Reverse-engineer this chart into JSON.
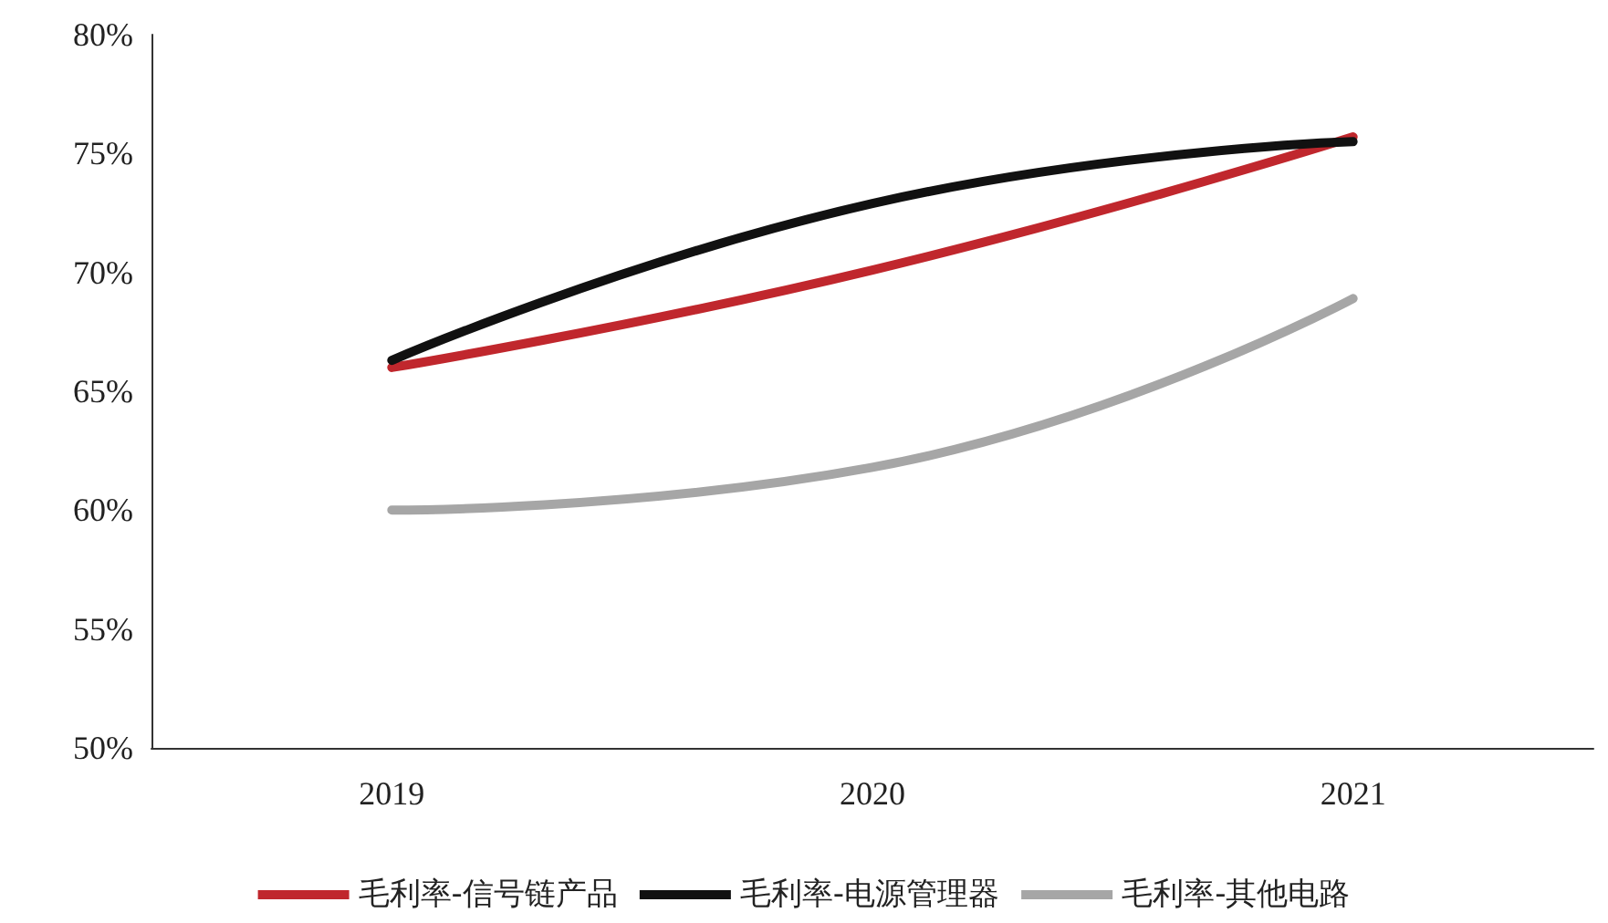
{
  "chart_data": {
    "type": "line",
    "categories": [
      "2019",
      "2020",
      "2021"
    ],
    "series": [
      {
        "name": "毛利率-信号链产品",
        "color": "#c0272d",
        "values": [
          66.0,
          70.1,
          75.7
        ]
      },
      {
        "name": "毛利率-电源管理器",
        "color": "#111111",
        "values": [
          66.3,
          72.9,
          75.5
        ]
      },
      {
        "name": "毛利率-其他电路",
        "color": "#a6a6a6",
        "values": [
          60.0,
          61.8,
          68.9
        ]
      }
    ],
    "ylim": [
      50,
      80
    ],
    "yticks": [
      {
        "value": 50,
        "label": "50%"
      },
      {
        "value": 55,
        "label": "55%"
      },
      {
        "value": 60,
        "label": "60%"
      },
      {
        "value": 65,
        "label": "65%"
      },
      {
        "value": 70,
        "label": "70%"
      },
      {
        "value": 75,
        "label": "75%"
      },
      {
        "value": 80,
        "label": "80%"
      }
    ],
    "grid": false,
    "legend": "bottom",
    "marker": "none",
    "line_style": "solid"
  }
}
